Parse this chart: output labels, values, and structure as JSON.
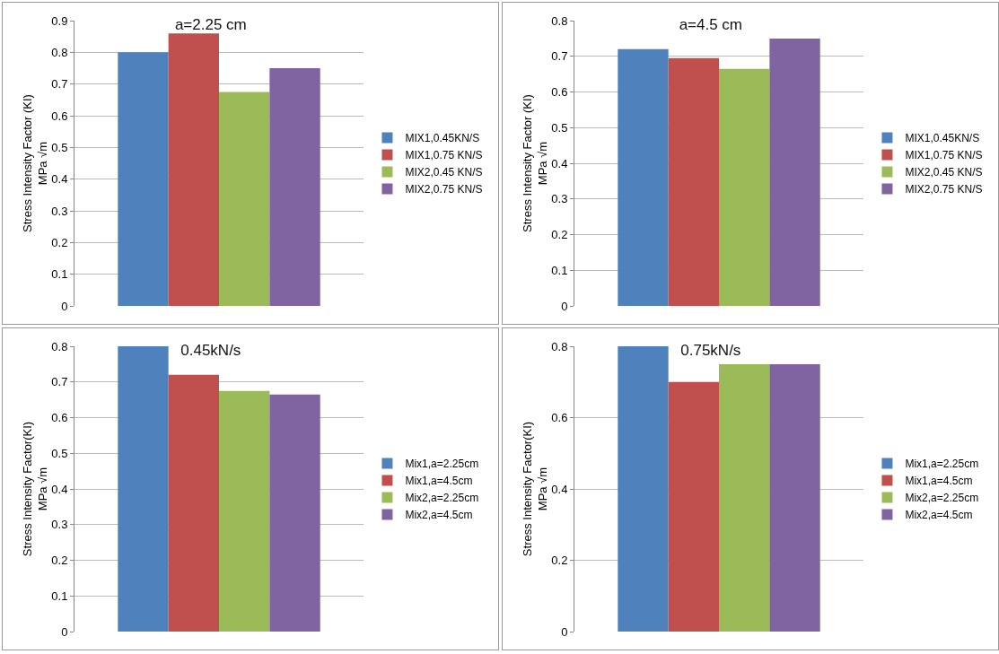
{
  "chart_data": [
    {
      "type": "bar",
      "title": "a=2.25 cm",
      "ylabel": "Stress Intensity Factor (KI)\nMPa √m",
      "categories": [
        null
      ],
      "series": [
        {
          "name": "MIX1,0.45KN/S",
          "color": "#4f81bd",
          "values": [
            0.8
          ]
        },
        {
          "name": "MIX1,0.75 KN/S",
          "color": "#c0504d",
          "values": [
            0.86
          ]
        },
        {
          "name": "MIX2,0.45 KN/S",
          "color": "#9bbb59",
          "values": [
            0.675
          ]
        },
        {
          "name": "MIX2,0.75 KN/S",
          "color": "#8064a2",
          "values": [
            0.75
          ]
        }
      ],
      "ylim": [
        0,
        0.9
      ],
      "yticks": [
        0,
        0.1,
        0.2,
        0.3,
        0.4,
        0.5,
        0.6,
        0.7,
        0.8,
        0.9
      ],
      "grid": "y",
      "legend": "right",
      "tick_labels": "y"
    },
    {
      "type": "bar",
      "title": "a=4.5 cm",
      "ylabel": "Stress Intensity Factor (KI)\nMPa √m",
      "categories": [
        null
      ],
      "series": [
        {
          "name": "MIX1,0.45KN/S",
          "color": "#4f81bd",
          "values": [
            0.72
          ]
        },
        {
          "name": "MIX1,0.75 KN/S",
          "color": "#c0504d",
          "values": [
            0.695
          ]
        },
        {
          "name": "MIX2,0.45 KN/S",
          "color": "#9bbb59",
          "values": [
            0.665
          ]
        },
        {
          "name": "MIX2,0.75 KN/S",
          "color": "#8064a2",
          "values": [
            0.75
          ]
        }
      ],
      "ylim": [
        0,
        0.8
      ],
      "yticks": [
        0,
        0.1,
        0.2,
        0.3,
        0.4,
        0.5,
        0.6,
        0.7,
        0.8
      ],
      "grid": "y",
      "legend": "right",
      "tick_labels": "y"
    },
    {
      "type": "bar",
      "title": "0.45kN/s",
      "ylabel": "Stress Intensity Factor(KI)\nMPa √m",
      "categories": [
        null
      ],
      "series": [
        {
          "name": "Mix1,a=2.25cm",
          "color": "#4f81bd",
          "values": [
            0.8
          ]
        },
        {
          "name": "Mix1,a=4.5cm",
          "color": "#c0504d",
          "values": [
            0.72
          ]
        },
        {
          "name": "Mix2,a=2.25cm",
          "color": "#9bbb59",
          "values": [
            0.675
          ]
        },
        {
          "name": "Mix2,a=4.5cm",
          "color": "#8064a2",
          "values": [
            0.665
          ]
        }
      ],
      "ylim": [
        0,
        0.8
      ],
      "yticks": [
        0,
        0.1,
        0.2,
        0.3,
        0.4,
        0.5,
        0.6,
        0.7,
        0.8
      ],
      "grid": "y",
      "legend": "right",
      "tick_labels": "y"
    },
    {
      "type": "bar",
      "title": "0.75kN/s",
      "ylabel": "Stress Intensity Factor(KI)\nMPa √m",
      "categories": [
        null
      ],
      "series": [
        {
          "name": "Mix1,a=2.25cm",
          "color": "#4f81bd",
          "values": [
            0.8
          ]
        },
        {
          "name": "Mix1,a=4.5cm",
          "color": "#c0504d",
          "values": [
            0.7
          ]
        },
        {
          "name": "Mix2,a=2.25cm",
          "color": "#9bbb59",
          "values": [
            0.75
          ]
        },
        {
          "name": "Mix2,a=4.5cm",
          "color": "#8064a2",
          "values": [
            0.75
          ]
        }
      ],
      "ylim": [
        0,
        0.8
      ],
      "yticks": [
        0,
        0.2,
        0.4,
        0.6,
        0.8
      ],
      "grid": "y",
      "legend": "right",
      "tick_labels": "y"
    }
  ]
}
